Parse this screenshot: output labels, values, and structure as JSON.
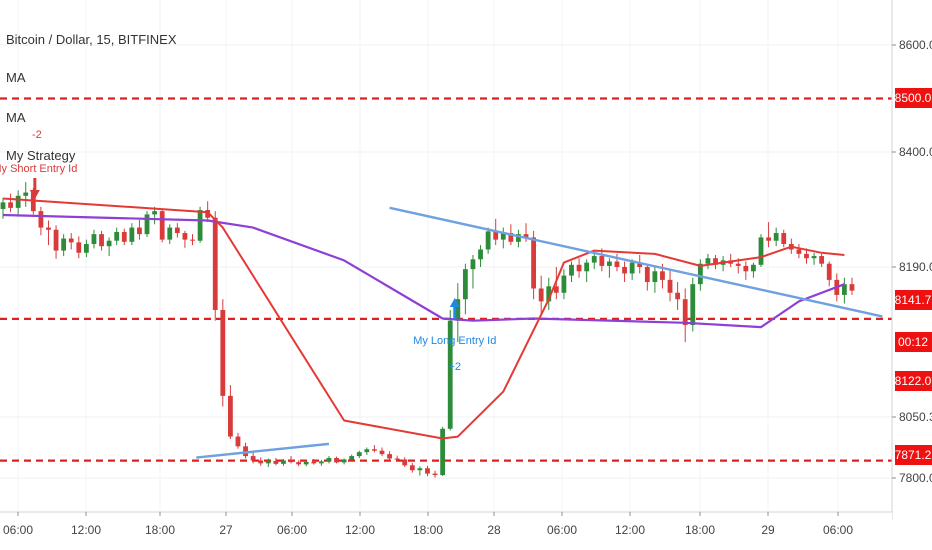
{
  "header": {
    "symbol_line": "Bitcoin / Dollar, 15, BITFINEX",
    "indicators": [
      "MA",
      "MA",
      "My Strategy"
    ]
  },
  "colors": {
    "up": "#2e8b3a",
    "down": "#d93a3a",
    "ma_fast": "#e53935",
    "ma_slow": "#8e3fd6",
    "trend": "#6fa0e0",
    "level": "#e02020",
    "tag": "#ee1111",
    "long_signal": "#1e88e5"
  },
  "chart_data": {
    "type": "candlestick",
    "title": "Bitcoin / Dollar, 15, BITFINEX",
    "x_ticks": [
      "06:00",
      "12:00",
      "18:00",
      "27",
      "06:00",
      "12:00",
      "18:00",
      "28",
      "06:00",
      "12:00",
      "18:00",
      "29",
      "06:00"
    ],
    "y_ticks": [
      7800,
      8050.3,
      8190,
      8400,
      8600
    ],
    "ylim": [
      7780,
      8680
    ],
    "grid": true,
    "price_levels": [
      8500.0,
      8141.7,
      7871.2
    ],
    "price_tags": [
      "8500.0",
      "8141.7",
      "00:12",
      "8122.0",
      "7871.2"
    ],
    "axis_labels": [
      "8600.0",
      "8400.0",
      "8190.0",
      "8050.3",
      "7800.0"
    ],
    "signals": [
      {
        "label": "My Short Entry Id",
        "qty": "-2"
      },
      {
        "label": "My Long Entry Id",
        "qty": "+2"
      }
    ],
    "candles": [
      [
        8296,
        8316,
        8278,
        8308
      ],
      [
        8308,
        8324,
        8290,
        8298
      ],
      [
        8298,
        8330,
        8282,
        8320
      ],
      [
        8320,
        8345,
        8300,
        8326
      ],
      [
        8326,
        8334,
        8286,
        8292
      ],
      [
        8292,
        8300,
        8248,
        8262
      ],
      [
        8262,
        8275,
        8230,
        8258
      ],
      [
        8258,
        8266,
        8205,
        8220
      ],
      [
        8220,
        8250,
        8210,
        8242
      ],
      [
        8242,
        8252,
        8222,
        8235
      ],
      [
        8235,
        8246,
        8206,
        8216
      ],
      [
        8216,
        8240,
        8208,
        8232
      ],
      [
        8232,
        8258,
        8224,
        8250
      ],
      [
        8250,
        8256,
        8220,
        8228
      ],
      [
        8228,
        8244,
        8210,
        8238
      ],
      [
        8238,
        8262,
        8230,
        8254
      ],
      [
        8254,
        8260,
        8230,
        8236
      ],
      [
        8236,
        8270,
        8230,
        8262
      ],
      [
        8262,
        8276,
        8240,
        8250
      ],
      [
        8250,
        8292,
        8245,
        8286
      ],
      [
        8286,
        8300,
        8268,
        8292
      ],
      [
        8292,
        8296,
        8235,
        8240
      ],
      [
        8240,
        8268,
        8232,
        8262
      ],
      [
        8262,
        8270,
        8244,
        8252
      ],
      [
        8252,
        8256,
        8225,
        8240
      ],
      [
        8240,
        8250,
        8230,
        8238
      ],
      [
        8238,
        8300,
        8234,
        8294
      ],
      [
        8294,
        8310,
        8272,
        8280
      ],
      [
        8280,
        8292,
        8140,
        8150
      ],
      [
        8150,
        8160,
        8060,
        8070
      ],
      [
        8070,
        8080,
        7960,
        7970
      ],
      [
        7970,
        7985,
        7920,
        7930
      ],
      [
        7930,
        7945,
        7880,
        7890
      ],
      [
        7890,
        7905,
        7860,
        7872
      ],
      [
        7872,
        7885,
        7850,
        7860
      ],
      [
        7860,
        7880,
        7845,
        7870
      ],
      [
        7870,
        7882,
        7852,
        7858
      ],
      [
        7858,
        7878,
        7850,
        7872
      ],
      [
        7872,
        7890,
        7860,
        7865
      ],
      [
        7865,
        7872,
        7848,
        7856
      ],
      [
        7856,
        7870,
        7848,
        7866
      ],
      [
        7866,
        7878,
        7855,
        7860
      ],
      [
        7860,
        7874,
        7850,
        7868
      ],
      [
        7868,
        7890,
        7860,
        7882
      ],
      [
        7882,
        7888,
        7860,
        7864
      ],
      [
        7864,
        7880,
        7856,
        7876
      ],
      [
        7876,
        7896,
        7870,
        7890
      ],
      [
        7890,
        7912,
        7882,
        7906
      ],
      [
        7906,
        7925,
        7895,
        7918
      ],
      [
        7918,
        7935,
        7905,
        7912
      ],
      [
        7912,
        7925,
        7890,
        7898
      ],
      [
        7898,
        7910,
        7872,
        7880
      ],
      [
        7880,
        7892,
        7868,
        7876
      ],
      [
        7876,
        7885,
        7845,
        7852
      ],
      [
        7852,
        7862,
        7822,
        7832
      ],
      [
        7832,
        7848,
        7810,
        7840
      ],
      [
        7840,
        7850,
        7808,
        7818
      ],
      [
        7818,
        7830,
        7802,
        7812
      ],
      [
        7812,
        8010,
        7808,
        8002
      ],
      [
        8002,
        8150,
        7995,
        8140
      ],
      [
        8140,
        8175,
        8120,
        8160
      ],
      [
        8160,
        8196,
        8146,
        8188
      ],
      [
        8188,
        8212,
        8170,
        8204
      ],
      [
        8204,
        8230,
        8190,
        8222
      ],
      [
        8222,
        8262,
        8214,
        8255
      ],
      [
        8255,
        8278,
        8230,
        8240
      ],
      [
        8240,
        8262,
        8224,
        8252
      ],
      [
        8252,
        8268,
        8230,
        8236
      ],
      [
        8236,
        8258,
        8226,
        8250
      ],
      [
        8250,
        8270,
        8236,
        8244
      ],
      [
        8244,
        8256,
        8160,
        8170
      ],
      [
        8170,
        8182,
        8146,
        8158
      ],
      [
        8158,
        8180,
        8150,
        8172
      ],
      [
        8172,
        8190,
        8160,
        8166
      ],
      [
        8166,
        8188,
        8160,
        8182
      ],
      [
        8182,
        8200,
        8176,
        8194
      ],
      [
        8194,
        8206,
        8180,
        8186
      ],
      [
        8186,
        8204,
        8176,
        8198
      ],
      [
        8198,
        8218,
        8188,
        8210
      ],
      [
        8210,
        8224,
        8186,
        8192
      ],
      [
        8192,
        8206,
        8180,
        8200
      ],
      [
        8200,
        8214,
        8186,
        8190
      ],
      [
        8190,
        8200,
        8176,
        8184
      ],
      [
        8184,
        8204,
        8178,
        8198
      ],
      [
        8198,
        8212,
        8184,
        8190
      ],
      [
        8190,
        8196,
        8168,
        8176
      ],
      [
        8176,
        8192,
        8166,
        8186
      ],
      [
        8186,
        8196,
        8170,
        8178
      ],
      [
        8178,
        8188,
        8158,
        8166
      ],
      [
        8166,
        8176,
        8150,
        8160
      ],
      [
        8160,
        8170,
        8120,
        8136
      ],
      [
        8136,
        8180,
        8130,
        8174
      ],
      [
        8174,
        8204,
        8168,
        8196
      ],
      [
        8196,
        8214,
        8188,
        8206
      ],
      [
        8206,
        8212,
        8188,
        8194
      ],
      [
        8194,
        8210,
        8186,
        8202
      ],
      [
        8202,
        8214,
        8190,
        8196
      ],
      [
        8196,
        8206,
        8184,
        8192
      ],
      [
        8192,
        8200,
        8178,
        8186
      ],
      [
        8186,
        8198,
        8180,
        8194
      ],
      [
        8194,
        8250,
        8190,
        8244
      ],
      [
        8244,
        8272,
        8226,
        8238
      ],
      [
        8238,
        8262,
        8228,
        8252
      ],
      [
        8252,
        8258,
        8226,
        8232
      ],
      [
        8232,
        8242,
        8214,
        8222
      ],
      [
        8222,
        8232,
        8206,
        8214
      ],
      [
        8214,
        8224,
        8196,
        8206
      ],
      [
        8206,
        8216,
        8194,
        8210
      ],
      [
        8210,
        8214,
        8190,
        8196
      ],
      [
        8196,
        8200,
        8172,
        8178
      ],
      [
        8178,
        8184,
        8158,
        8164
      ],
      [
        8164,
        8180,
        8156,
        8174
      ],
      [
        8174,
        8180,
        8164,
        8168
      ]
    ],
    "ma_fast": [
      [
        0,
        8315
      ],
      [
        27,
        8290
      ],
      [
        29,
        8262
      ],
      [
        45,
        8036
      ],
      [
        58,
        7962
      ],
      [
        60,
        7970
      ],
      [
        66,
        8074
      ],
      [
        72,
        8160
      ],
      [
        74,
        8198
      ],
      [
        78,
        8220
      ],
      [
        86,
        8214
      ],
      [
        92,
        8192
      ],
      [
        100,
        8208
      ],
      [
        104,
        8227
      ],
      [
        108,
        8216
      ],
      [
        111,
        8212
      ]
    ],
    "ma_slow": [
      [
        0,
        8285
      ],
      [
        27,
        8275
      ],
      [
        33,
        8262
      ],
      [
        45,
        8202
      ],
      [
        58,
        8142
      ],
      [
        62,
        8140
      ],
      [
        70,
        8142
      ],
      [
        90,
        8138
      ],
      [
        100,
        8134
      ],
      [
        105,
        8158
      ],
      [
        111,
        8174
      ]
    ],
    "trendlines": [
      {
        "from": [
          25.5,
          7884
        ],
        "to": [
          43,
          7940
        ]
      },
      {
        "from": [
          51,
          8298
        ],
        "to": [
          116,
          8144
        ]
      }
    ]
  }
}
